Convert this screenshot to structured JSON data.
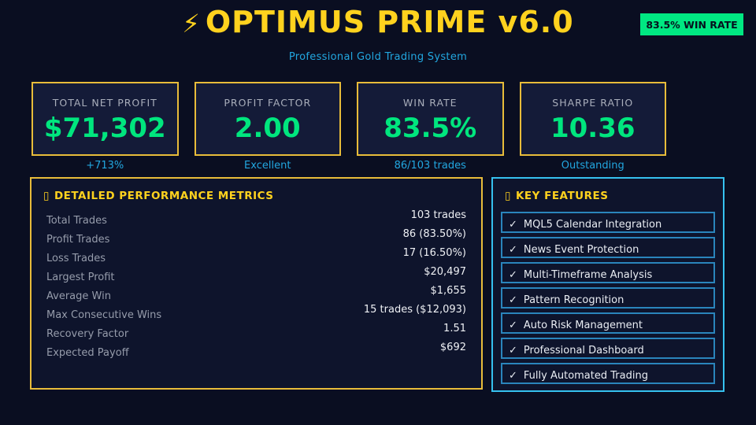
{
  "header": {
    "bolt_icon": "⚡",
    "title": "OPTIMUS PRIME v6.0",
    "subtitle": "Professional Gold Trading System",
    "badge": "83.5% WIN RATE"
  },
  "stat_cards": [
    {
      "label": "TOTAL NET PROFIT",
      "value": "$71,302",
      "caption": "+713%"
    },
    {
      "label": "PROFIT FACTOR",
      "value": "2.00",
      "caption": "Excellent"
    },
    {
      "label": "WIN RATE",
      "value": "83.5%",
      "caption": "86/103 trades"
    },
    {
      "label": "SHARPE RATIO",
      "value": "10.36",
      "caption": "Outstanding"
    }
  ],
  "metrics_panel": {
    "icon_glyph": "▯",
    "title": "DETAILED PERFORMANCE METRICS",
    "rows": [
      {
        "label": "Total Trades",
        "value": "103 trades"
      },
      {
        "label": "Profit Trades",
        "value": "86 (83.50%)"
      },
      {
        "label": "Loss Trades",
        "value": "17 (16.50%)"
      },
      {
        "label": "Largest Profit",
        "value": "$20,497"
      },
      {
        "label": "Average Win",
        "value": "$1,655"
      },
      {
        "label": "Max Consecutive Wins",
        "value": "15 trades ($12,093)"
      },
      {
        "label": "Recovery Factor",
        "value": "1.51"
      },
      {
        "label": "Expected Payoff",
        "value": "$692"
      }
    ]
  },
  "features_panel": {
    "icon_glyph": "▯",
    "title": "KEY FEATURES",
    "check_glyph": "✓",
    "items": [
      "MQL5 Calendar Integration",
      "News Event Protection",
      "Multi-Timeframe Analysis",
      "Pattern Recognition",
      "Auto Risk Management",
      "Professional Dashboard",
      "Fully Automated Trading"
    ]
  },
  "colors": {
    "background": "#0a0e21",
    "card_background": "#141b38",
    "gold_border": "#e8bc3a",
    "title_gold": "#ffd21e",
    "value_green": "#00e67e",
    "badge_green": "#00e882",
    "caption_cyan": "#22a7e0",
    "panel_cyan_border": "#36c1ef",
    "feature_item_border": "#2a85bc"
  }
}
